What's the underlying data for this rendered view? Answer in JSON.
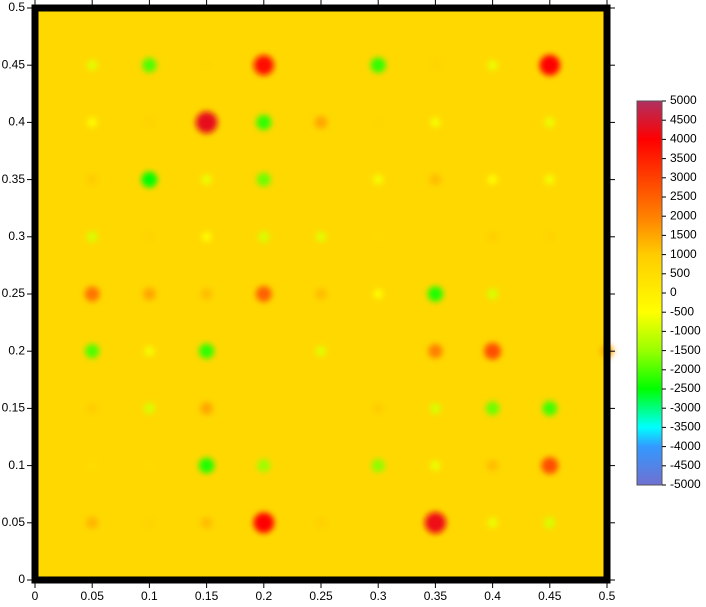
{
  "chart_data": {
    "type": "spot-map",
    "x": [
      0.05,
      0.1,
      0.15,
      0.2,
      0.3,
      0.35,
      0.4,
      0.45,
      0.05,
      0.1,
      0.15,
      0.2,
      0.25,
      0.3,
      0.35,
      0.45,
      0.05,
      0.1,
      0.15,
      0.2,
      0.3,
      0.35,
      0.4,
      0.45,
      0.05,
      0.1,
      0.15,
      0.2,
      0.25,
      0.3,
      0.4,
      0.45,
      0.05,
      0.1,
      0.15,
      0.2,
      0.25,
      0.3,
      0.35,
      0.4,
      0.05,
      0.1,
      0.15,
      0.25,
      0.35,
      0.4,
      0.5,
      0.05,
      0.1,
      0.15,
      0.3,
      0.35,
      0.4,
      0.45,
      0.05,
      0.1,
      0.15,
      0.2,
      0.3,
      0.35,
      0.4,
      0.45,
      0.05,
      0.1,
      0.15,
      0.2,
      0.25,
      0.35,
      0.4,
      0.45
    ],
    "y": [
      0.45,
      0.45,
      0.45,
      0.45,
      0.45,
      0.45,
      0.45,
      0.45,
      0.4,
      0.4,
      0.4,
      0.4,
      0.4,
      0.4,
      0.4,
      0.4,
      0.35,
      0.35,
      0.35,
      0.35,
      0.35,
      0.35,
      0.35,
      0.35,
      0.3,
      0.3,
      0.3,
      0.3,
      0.3,
      0.3,
      0.3,
      0.3,
      0.25,
      0.25,
      0.25,
      0.25,
      0.25,
      0.25,
      0.25,
      0.25,
      0.2,
      0.2,
      0.2,
      0.2,
      0.2,
      0.2,
      0.2,
      0.15,
      0.15,
      0.15,
      0.15,
      0.15,
      0.15,
      0.15,
      0.1,
      0.1,
      0.1,
      0.1,
      0.1,
      0.1,
      0.1,
      0.1,
      0.05,
      0.05,
      0.05,
      0.05,
      0.05,
      0.05,
      0.05,
      0.05
    ],
    "values": [
      -800,
      -2000,
      700,
      3800,
      -2200,
      800,
      -700,
      4000,
      -500,
      800,
      4300,
      -2200,
      1500,
      700,
      -600,
      -700,
      1000,
      -2500,
      -700,
      -1800,
      -600,
      1200,
      -500,
      -600,
      -900,
      800,
      -500,
      -900,
      -800,
      600,
      900,
      800,
      2200,
      1500,
      1200,
      2500,
      1200,
      -500,
      -2300,
      -900,
      -2000,
      -600,
      -2200,
      -800,
      2000,
      2800,
      1500,
      1000,
      -900,
      1500,
      1000,
      -900,
      -1800,
      -2100,
      500,
      600,
      -2300,
      -1500,
      -1600,
      -700,
      1200,
      2800,
      1300,
      800,
      1200,
      4000,
      900,
      4200,
      -700,
      -900
    ],
    "xlim": [
      0,
      0.5
    ],
    "xticks": [
      0,
      0.05,
      0.1,
      0.15,
      0.2,
      0.25,
      0.3,
      0.35,
      0.4,
      0.45,
      0.5
    ],
    "ylim": [
      0,
      0.5
    ],
    "yticks": [
      0,
      0.05,
      0.1,
      0.15,
      0.2,
      0.25,
      0.3,
      0.35,
      0.4,
      0.45,
      0.5
    ],
    "clim": [
      -5000,
      5000
    ],
    "cticks": [
      5000,
      4500,
      4000,
      3500,
      3000,
      2500,
      2000,
      1500,
      1000,
      500,
      0,
      -500,
      -1000,
      -1500,
      -2000,
      -2500,
      -3000,
      -3500,
      -4000,
      -4500,
      -5000
    ],
    "colorscale": [
      [
        -5000,
        "#7070d0"
      ],
      [
        -4000,
        "#3399ff"
      ],
      [
        -3500,
        "#00ffff"
      ],
      [
        -2500,
        "#00ff00"
      ],
      [
        -1500,
        "#99ff00"
      ],
      [
        -500,
        "#ffff00"
      ],
      [
        1000,
        "#ffcc00"
      ],
      [
        2000,
        "#ff8000"
      ],
      [
        3000,
        "#ff4000"
      ],
      [
        4000,
        "#ff0000"
      ],
      [
        5000,
        "#b03060"
      ]
    ]
  }
}
